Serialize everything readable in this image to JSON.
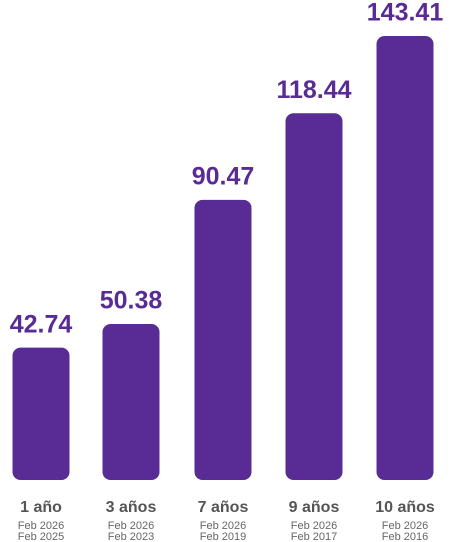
{
  "chart_data": {
    "type": "bar",
    "categories": [
      "1 año",
      "3 años",
      "7 años",
      "9 años",
      "10 años"
    ],
    "periods": [
      [
        "Feb 2026",
        "Feb 2025"
      ],
      [
        "Feb 2026",
        "Feb 2023"
      ],
      [
        "Feb 2026",
        "Feb 2019"
      ],
      [
        "Feb 2026",
        "Feb 2017"
      ],
      [
        "Feb 2026",
        "Feb 2016"
      ]
    ],
    "values": [
      42.74,
      50.38,
      90.47,
      118.44,
      143.41
    ],
    "color": "#582c94"
  }
}
